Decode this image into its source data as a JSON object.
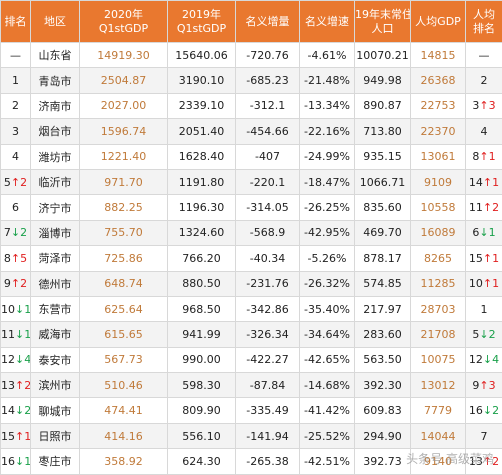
{
  "headers": [
    "排名",
    "地区",
    "2020年\nQ1stGDP",
    "2019年\nQ1stGDP",
    "名义增量",
    "名义增速",
    "19年末常住\n人口",
    "人均GDP",
    "人均\n排名"
  ],
  "rows": [
    {
      "rank": "—",
      "rank_arrow": "",
      "rank_dir": "",
      "region": "山东省",
      "g2020": "14919.30",
      "g2019": "15640.06",
      "inc": "-720.76",
      "rate": "-4.61%",
      "pop": "10070.21",
      "pc": "14815",
      "pcrank": "—",
      "pc_arrow": "",
      "pc_dir": ""
    },
    {
      "rank": "1",
      "rank_arrow": "",
      "rank_dir": "",
      "region": "青岛市",
      "g2020": "2504.87",
      "g2019": "3190.10",
      "inc": "-685.23",
      "rate": "-21.48%",
      "pop": "949.98",
      "pc": "26368",
      "pcrank": "2",
      "pc_arrow": "",
      "pc_dir": ""
    },
    {
      "rank": "2",
      "rank_arrow": "",
      "rank_dir": "",
      "region": "济南市",
      "g2020": "2027.00",
      "g2019": "2339.10",
      "inc": "-312.1",
      "rate": "-13.34%",
      "pop": "890.87",
      "pc": "22753",
      "pcrank": "3",
      "pc_arrow": "↑3",
      "pc_dir": "up"
    },
    {
      "rank": "3",
      "rank_arrow": "",
      "rank_dir": "",
      "region": "烟台市",
      "g2020": "1596.74",
      "g2019": "2051.40",
      "inc": "-454.66",
      "rate": "-22.16%",
      "pop": "713.80",
      "pc": "22370",
      "pcrank": "4",
      "pc_arrow": "",
      "pc_dir": ""
    },
    {
      "rank": "4",
      "rank_arrow": "",
      "rank_dir": "",
      "region": "潍坊市",
      "g2020": "1221.40",
      "g2019": "1628.40",
      "inc": "-407",
      "rate": "-24.99%",
      "pop": "935.15",
      "pc": "13061",
      "pcrank": "8",
      "pc_arrow": "↑1",
      "pc_dir": "up"
    },
    {
      "rank": "5",
      "rank_arrow": "↑2",
      "rank_dir": "up",
      "region": "临沂市",
      "g2020": "971.70",
      "g2019": "1191.80",
      "inc": "-220.1",
      "rate": "-18.47%",
      "pop": "1066.71",
      "pc": "9109",
      "pcrank": "14",
      "pc_arrow": "↑1",
      "pc_dir": "up"
    },
    {
      "rank": "6",
      "rank_arrow": "",
      "rank_dir": "",
      "region": "济宁市",
      "g2020": "882.25",
      "g2019": "1196.30",
      "inc": "-314.05",
      "rate": "-26.25%",
      "pop": "835.60",
      "pc": "10558",
      "pcrank": "11",
      "pc_arrow": "↑2",
      "pc_dir": "up"
    },
    {
      "rank": "7",
      "rank_arrow": "↓2",
      "rank_dir": "down",
      "region": "淄博市",
      "g2020": "755.70",
      "g2019": "1324.60",
      "inc": "-568.9",
      "rate": "-42.95%",
      "pop": "469.70",
      "pc": "16089",
      "pcrank": "6",
      "pc_arrow": "↓1",
      "pc_dir": "down"
    },
    {
      "rank": "8",
      "rank_arrow": "↑5",
      "rank_dir": "up",
      "region": "菏泽市",
      "g2020": "725.86",
      "g2019": "766.20",
      "inc": "-40.34",
      "rate": "-5.26%",
      "pop": "878.17",
      "pc": "8265",
      "pcrank": "15",
      "pc_arrow": "↑1",
      "pc_dir": "up"
    },
    {
      "rank": "9",
      "rank_arrow": "↑2",
      "rank_dir": "up",
      "region": "德州市",
      "g2020": "648.74",
      "g2019": "880.50",
      "inc": "-231.76",
      "rate": "-26.32%",
      "pop": "574.85",
      "pc": "11285",
      "pcrank": "10",
      "pc_arrow": "↑1",
      "pc_dir": "up"
    },
    {
      "rank": "10",
      "rank_arrow": "↓1",
      "rank_dir": "down",
      "region": "东营市",
      "g2020": "625.64",
      "g2019": "968.50",
      "inc": "-342.86",
      "rate": "-35.40%",
      "pop": "217.97",
      "pc": "28703",
      "pcrank": "1",
      "pc_arrow": "",
      "pc_dir": ""
    },
    {
      "rank": "11",
      "rank_arrow": "↓1",
      "rank_dir": "down",
      "region": "威海市",
      "g2020": "615.65",
      "g2019": "941.99",
      "inc": "-326.34",
      "rate": "-34.64%",
      "pop": "283.60",
      "pc": "21708",
      "pcrank": "5",
      "pc_arrow": "↓2",
      "pc_dir": "down"
    },
    {
      "rank": "12",
      "rank_arrow": "↓4",
      "rank_dir": "down",
      "region": "泰安市",
      "g2020": "567.73",
      "g2019": "990.00",
      "inc": "-422.27",
      "rate": "-42.65%",
      "pop": "563.50",
      "pc": "10075",
      "pcrank": "12",
      "pc_arrow": "↓4",
      "pc_dir": "down"
    },
    {
      "rank": "13",
      "rank_arrow": "↑2",
      "rank_dir": "up",
      "region": "滨州市",
      "g2020": "510.46",
      "g2019": "598.30",
      "inc": "-87.84",
      "rate": "-14.68%",
      "pop": "392.30",
      "pc": "13012",
      "pcrank": "9",
      "pc_arrow": "↑3",
      "pc_dir": "up"
    },
    {
      "rank": "14",
      "rank_arrow": "↓2",
      "rank_dir": "down",
      "region": "聊城市",
      "g2020": "474.41",
      "g2019": "809.90",
      "inc": "-335.49",
      "rate": "-41.42%",
      "pop": "609.83",
      "pc": "7779",
      "pcrank": "16",
      "pc_arrow": "↓2",
      "pc_dir": "down"
    },
    {
      "rank": "15",
      "rank_arrow": "↑1",
      "rank_dir": "up",
      "region": "日照市",
      "g2020": "414.16",
      "g2019": "556.10",
      "inc": "-141.94",
      "rate": "-25.52%",
      "pop": "294.90",
      "pc": "14044",
      "pcrank": "7",
      "pc_arrow": "",
      "pc_dir": ""
    },
    {
      "rank": "16",
      "rank_arrow": "↓1",
      "rank_dir": "down",
      "region": "枣庄市",
      "g2020": "358.92",
      "g2019": "624.30",
      "inc": "-265.38",
      "rate": "-42.51%",
      "pop": "392.73",
      "pc": "9140",
      "pcrank": "13",
      "pc_arrow": "↑2",
      "pc_dir": "up"
    }
  ],
  "watermark": "头条号 高级菜鸡"
}
